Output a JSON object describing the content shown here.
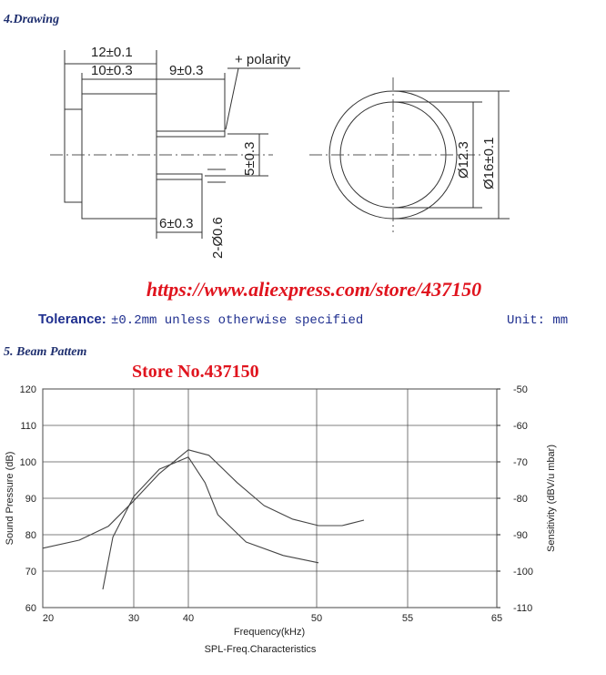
{
  "header": {
    "drawing_title": "4.Drawing",
    "url": "https://www.aliexpress.com/store/437150",
    "tolerance_label": "Tolerance:",
    "tolerance_text": "±0.2mm unless otherwise specified",
    "unit": "Unit: mm",
    "beam_title": "5. Beam Pattem"
  },
  "drawing": {
    "labels": [
      "12±0.1",
      "10±0.3",
      "9±0.3",
      "+ polarity",
      "5±0.3",
      "6±0.3",
      "2-Ø0.6",
      "Ø12.3",
      "Ø16±0.1"
    ]
  },
  "chart_data": {
    "type": "line",
    "annotation": "Store No.437150",
    "title": "SPL-Freq.Characteristics",
    "xlabel": "Frequency(kHz)",
    "ylabel": "Sound Pressure (dB)",
    "y2label": "Sensitivity (dBV/u mbar)",
    "xlim": [
      20,
      65
    ],
    "xticks": [
      20,
      30,
      40,
      50,
      55,
      65
    ],
    "ylim": [
      60,
      120
    ],
    "yticks": [
      60,
      70,
      80,
      90,
      100,
      110,
      120
    ],
    "y2lim": [
      -110,
      -50
    ],
    "y2ticks": [
      -110,
      -100,
      -90,
      -80,
      -70,
      -60,
      -50
    ],
    "grid": true,
    "series": [
      {
        "color": "#444444",
        "x": [
          20,
          24,
          27.2,
          30,
          34.7,
          40,
          41.6,
          43.8,
          45.9,
          48.1,
          50.1,
          51.4,
          52.6
        ],
        "values": [
          76.3,
          78.5,
          82.3,
          89.3,
          96.8,
          103.3,
          101.8,
          94.3,
          88,
          84.3,
          82.5,
          82.5,
          84
        ]
      },
      {
        "color": "#444444",
        "x": [
          26.6,
          27.7,
          30,
          34.7,
          40,
          41.3,
          42.3,
          44.5,
          47.4,
          50.1
        ],
        "values": [
          65,
          79.3,
          90.5,
          98,
          101.3,
          94.3,
          85.5,
          78,
          74.3,
          72.3
        ]
      }
    ]
  }
}
